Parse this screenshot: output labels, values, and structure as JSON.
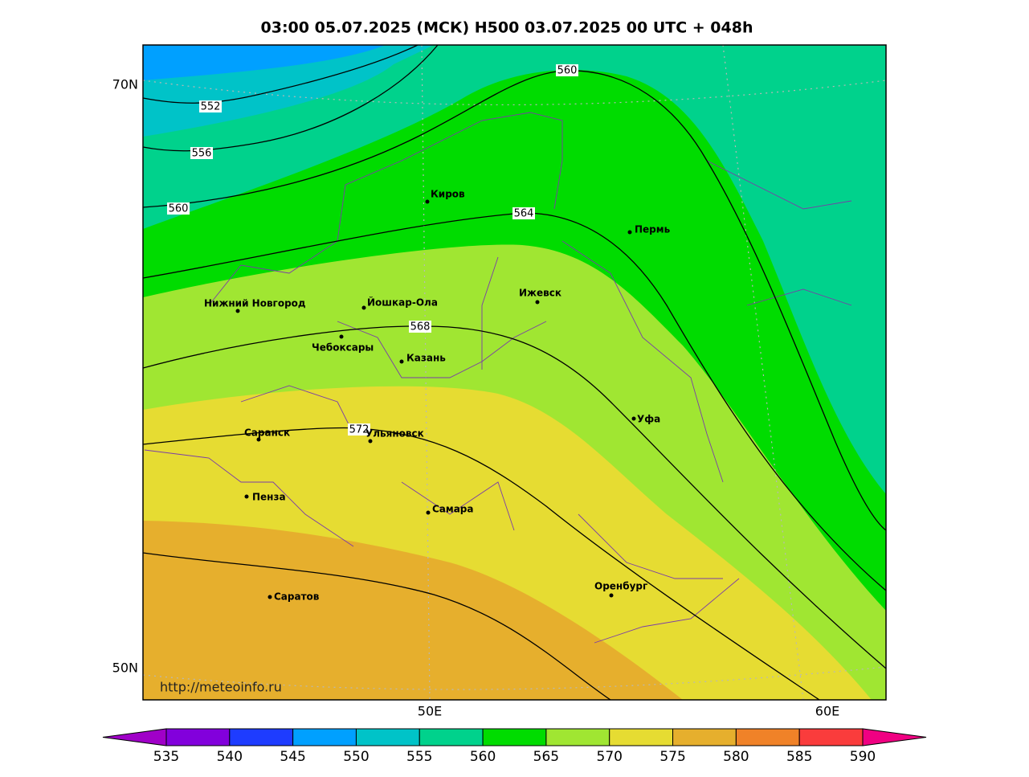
{
  "title": "03:00 05.07.2025 (МСК) H500  03.07.2025 00 UTC + 048h",
  "lat_labels": [
    "70N",
    "50N"
  ],
  "lon_labels": [
    "50E",
    "60E"
  ],
  "contour_labels": [
    "560",
    "552",
    "556",
    "560",
    "564",
    "568",
    "572"
  ],
  "cities": [
    {
      "name": "Киров"
    },
    {
      "name": "Пермь"
    },
    {
      "name": "Нижний Новгород"
    },
    {
      "name": "Йошкар-Ола"
    },
    {
      "name": "Ижевск"
    },
    {
      "name": "Чебоксары"
    },
    {
      "name": "Казань"
    },
    {
      "name": "Уфа"
    },
    {
      "name": "Саранск"
    },
    {
      "name": "Ульяновск"
    },
    {
      "name": "Пенза"
    },
    {
      "name": "Самара"
    },
    {
      "name": "Оренбург"
    },
    {
      "name": "Саратов"
    }
  ],
  "url": "http://meteoinfo.ru",
  "colorbar": {
    "labels": [
      535,
      540,
      545,
      550,
      555,
      560,
      565,
      570,
      575,
      580,
      585,
      590
    ],
    "colors": [
      "#8200dc",
      "#1e3cff",
      "#00a0ff",
      "#00c3c8",
      "#00d28c",
      "#00dc00",
      "#a0e632",
      "#e6dc32",
      "#e6af2d",
      "#f08228",
      "#fa3c3c"
    ],
    "under_color": "#a000c8",
    "over_color": "#f00082"
  }
}
